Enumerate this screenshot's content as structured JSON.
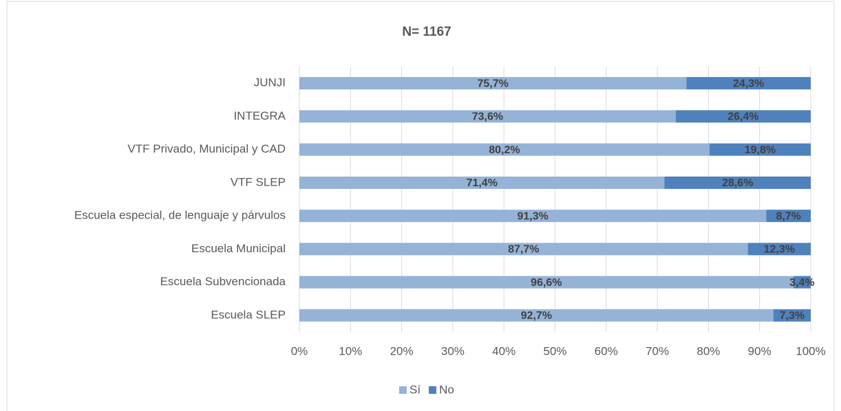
{
  "chart_data": {
    "type": "bar",
    "orientation": "horizontal",
    "stacked": true,
    "title": "N= 1167",
    "categories": [
      "JUNJI",
      "INTEGRA",
      "VTF Privado, Municipal y CAD",
      "VTF SLEP",
      "Escuela especial, de lenguaje y párvulos",
      "Escuela Municipal",
      "Escuela Subvencionada",
      "Escuela SLEP"
    ],
    "series": [
      {
        "name": "Sí",
        "color": "#95b3d7",
        "values": [
          75.7,
          73.6,
          80.2,
          71.4,
          91.3,
          87.7,
          96.6,
          92.7
        ],
        "value_labels": [
          "75,7%",
          "73,6%",
          "80,2%",
          "71,4%",
          "91,3%",
          "87,7%",
          "96,6%",
          "92,7%"
        ]
      },
      {
        "name": "No",
        "color": "#4f81bd",
        "values": [
          24.3,
          26.4,
          19.8,
          28.6,
          8.7,
          12.3,
          3.4,
          7.3
        ],
        "value_labels": [
          "24,3%",
          "26,4%",
          "19,8%",
          "28,6%",
          "8,7%",
          "12,3%",
          "3,4%",
          "7,3%"
        ]
      }
    ],
    "xlim": [
      0,
      100
    ],
    "xticks": [
      {
        "value": 0,
        "label": "0%"
      },
      {
        "value": 10,
        "label": "10%"
      },
      {
        "value": 20,
        "label": "20%"
      },
      {
        "value": 30,
        "label": "30%"
      },
      {
        "value": 40,
        "label": "40%"
      },
      {
        "value": 50,
        "label": "50%"
      },
      {
        "value": 60,
        "label": "60%"
      },
      {
        "value": 70,
        "label": "70%"
      },
      {
        "value": 80,
        "label": "80%"
      },
      {
        "value": 90,
        "label": "90%"
      },
      {
        "value": 100,
        "label": "100%"
      }
    ],
    "grid": true,
    "legend": "bottom"
  }
}
